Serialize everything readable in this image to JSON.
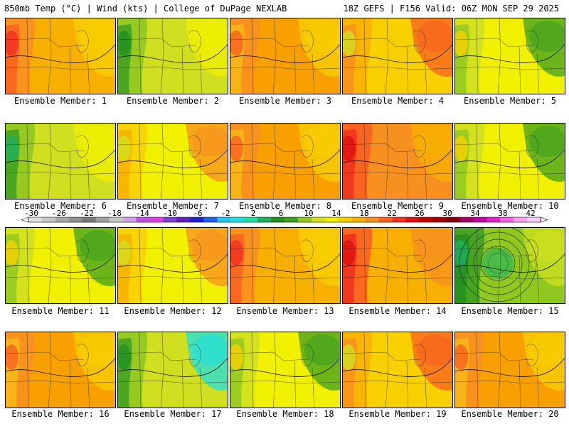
{
  "header": {
    "left": "850mb Temp (°C) | Wind (kts) | College of DuPage NEXLAB",
    "right": "18Z GEFS | F156 Valid: 06Z MON SEP 29 2025"
  },
  "legend": {
    "ticks": [
      "-30",
      "-26",
      "-22",
      "-18",
      "-14",
      "-10",
      "-6",
      "-2",
      "2",
      "6",
      "10",
      "14",
      "18",
      "22",
      "26",
      "30",
      "34",
      "38",
      "42"
    ],
    "colors": [
      "#e0e0e0",
      "#c8c8c8",
      "#a8a8a8",
      "#909090",
      "#787878",
      "#a0a0a0",
      "#c8c8c8",
      "#d2a0e6",
      "#c050e0",
      "#e040e0",
      "#8040d0",
      "#6020c0",
      "#2020d0",
      "#2060f0",
      "#20c8f0",
      "#20e0e0",
      "#20e0a0",
      "#20b060",
      "#209020",
      "#40a020",
      "#90c820",
      "#d0e020",
      "#f0f000",
      "#f8d000",
      "#f8b000",
      "#f89020",
      "#f86020",
      "#f03020",
      "#e01010",
      "#c00000",
      "#a00000",
      "#800010",
      "#a00060",
      "#c000a0",
      "#e020c0",
      "#f060e0",
      "#f8a0f0",
      "#f8d0f8"
    ]
  },
  "members": [
    {
      "label": "Ensemble Member: 1"
    },
    {
      "label": "Ensemble Member: 2"
    },
    {
      "label": "Ensemble Member: 3"
    },
    {
      "label": "Ensemble Member: 4"
    },
    {
      "label": "Ensemble Member: 5"
    },
    {
      "label": "Ensemble Member: 6"
    },
    {
      "label": "Ensemble Member: 7"
    },
    {
      "label": "Ensemble Member: 8"
    },
    {
      "label": "Ensemble Member: 9"
    },
    {
      "label": "Ensemble Member: 10"
    },
    {
      "label": "Ensemble Member: 11"
    },
    {
      "label": "Ensemble Member: 12"
    },
    {
      "label": "Ensemble Member: 13"
    },
    {
      "label": "Ensemble Member: 14"
    },
    {
      "label": "Ensemble Member: 15"
    },
    {
      "label": "Ensemble Member: 16"
    },
    {
      "label": "Ensemble Member: 17"
    },
    {
      "label": "Ensemble Member: 18"
    },
    {
      "label": "Ensemble Member: 19"
    },
    {
      "label": "Ensemble Member: 20"
    }
  ],
  "styles": [
    "warm",
    "cool",
    "warm2",
    "mid",
    "cool2",
    "cool3",
    "yellow",
    "warm2",
    "hot",
    "cool2",
    "cool2",
    "yellow",
    "warm",
    "hot2",
    "low",
    "warm2",
    "cyan",
    "cool2",
    "mid",
    "warm2"
  ]
}
